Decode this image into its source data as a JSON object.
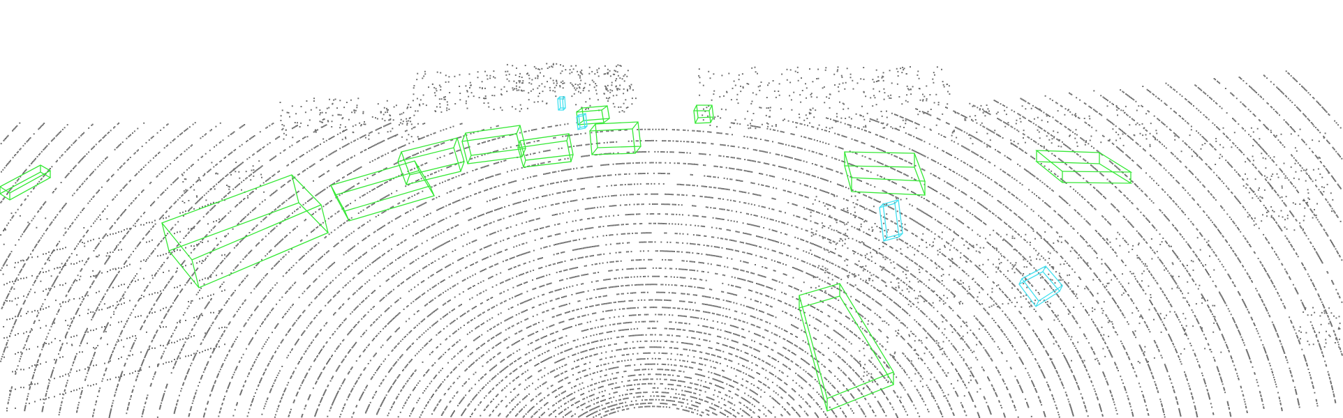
{
  "scene": {
    "background": "#ffffff",
    "point_color": "#6e6e6e",
    "classes": {
      "car": {
        "color": "#33e833"
      },
      "pedestrian": {
        "color": "#40e0f0"
      }
    },
    "object_counts": {
      "car": 13,
      "pedestrian": 4
    }
  }
}
